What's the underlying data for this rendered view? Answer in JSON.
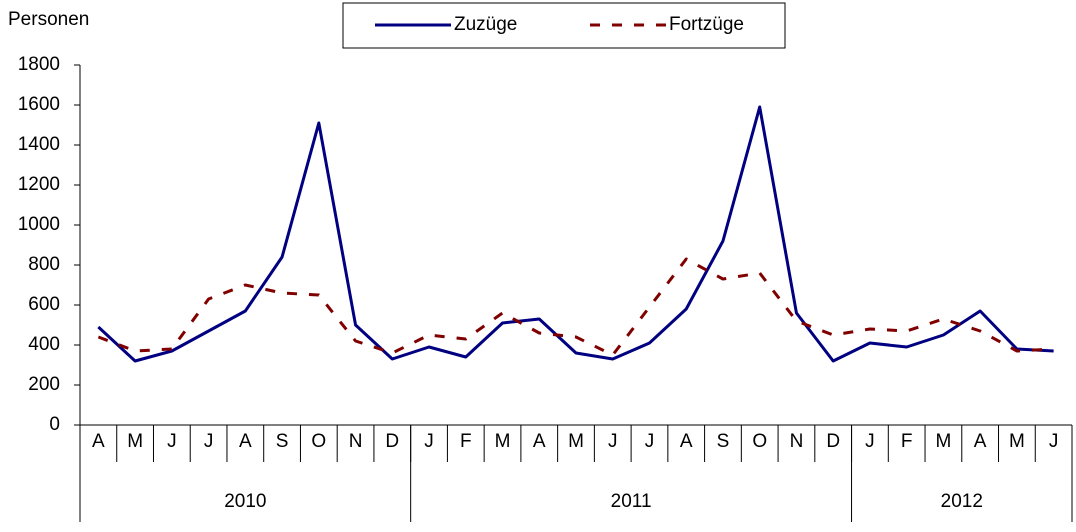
{
  "chart_data": {
    "type": "line",
    "y_label": "Personen",
    "categories": [
      "A",
      "M",
      "J",
      "J",
      "A",
      "S",
      "O",
      "N",
      "D",
      "J",
      "F",
      "M",
      "A",
      "M",
      "J",
      "J",
      "A",
      "S",
      "O",
      "N",
      "D",
      "J",
      "F",
      "M",
      "A",
      "M",
      "J"
    ],
    "year_groups": [
      {
        "label": "2010",
        "count": 9
      },
      {
        "label": "2011",
        "count": 12
      },
      {
        "label": "2012",
        "count": 6
      }
    ],
    "series": [
      {
        "name": "Zuzüge",
        "color": "#000080",
        "dashed": false,
        "values": [
          490,
          320,
          370,
          470,
          570,
          840,
          1510,
          500,
          330,
          390,
          340,
          510,
          530,
          360,
          330,
          410,
          580,
          920,
          1590,
          560,
          320,
          410,
          390,
          450,
          570,
          380,
          370
        ]
      },
      {
        "name": "Fortzüge",
        "color": "#800000",
        "dashed": true,
        "values": [
          440,
          370,
          380,
          630,
          700,
          660,
          650,
          420,
          360,
          450,
          430,
          560,
          460,
          440,
          350,
          590,
          830,
          730,
          760,
          520,
          450,
          480,
          470,
          530,
          470,
          370,
          380
        ]
      }
    ],
    "ylim": [
      0,
      1800
    ],
    "yticks": [
      0,
      200,
      400,
      600,
      800,
      1000,
      1200,
      1400,
      1600,
      1800
    ],
    "grid": false
  }
}
